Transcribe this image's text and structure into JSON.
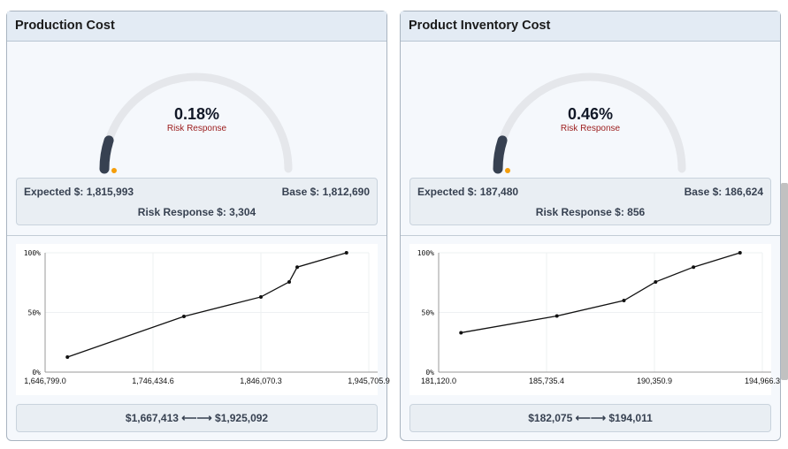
{
  "colors": {
    "gauge_track": "#e5e7eb",
    "gauge_fill": "#374151",
    "marker": "#f59e0b",
    "label": "#9b1c1c",
    "line": "#111111"
  },
  "panels": [
    {
      "title": "Production Cost",
      "gauge": {
        "percent": "0.18%",
        "value": 0.18,
        "label": "Risk Response"
      },
      "expected": "Expected $: 1,815,993",
      "base": "Base $: 1,812,690",
      "risk_response": "Risk Response $: 3,304",
      "range": {
        "min": "$1,667,413",
        "arrow": "⟵⟶",
        "max": "$1,925,092"
      }
    },
    {
      "title": "Product Inventory Cost",
      "gauge": {
        "percent": "0.46%",
        "value": 0.46,
        "label": "Risk Response"
      },
      "expected": "Expected $: 187,480",
      "base": "Base $: 186,624",
      "risk_response": "Risk Response $: 856",
      "range": {
        "min": "$182,075",
        "arrow": "⟵⟶",
        "max": "$194,011"
      }
    }
  ],
  "chart_data": [
    {
      "type": "line",
      "xlim": [
        1646799.0,
        1945705.9
      ],
      "ylim": [
        0,
        100
      ],
      "xticks": [
        "1,646,799.0",
        "1,746,434.6",
        "1,846,070.3",
        "1,945,705.9"
      ],
      "yticks": [
        "0%",
        "50%",
        "100%"
      ],
      "grid": true,
      "x": [
        1667413,
        1775000,
        1846070,
        1872200,
        1879600,
        1925092
      ],
      "y": [
        12.6,
        46.7,
        63,
        75.6,
        88,
        100
      ]
    },
    {
      "type": "line",
      "xlim": [
        181120.0,
        194966.3
      ],
      "ylim": [
        0,
        100
      ],
      "xticks": [
        "181,120.0",
        "185,735.4",
        "190,350.9",
        "194,966.3"
      ],
      "yticks": [
        "0%",
        "50%",
        "100%"
      ],
      "grid": true,
      "x": [
        182075,
        186177,
        189045,
        190400,
        192020,
        194011
      ],
      "y": [
        33,
        47,
        60,
        75.6,
        88,
        100
      ]
    }
  ]
}
